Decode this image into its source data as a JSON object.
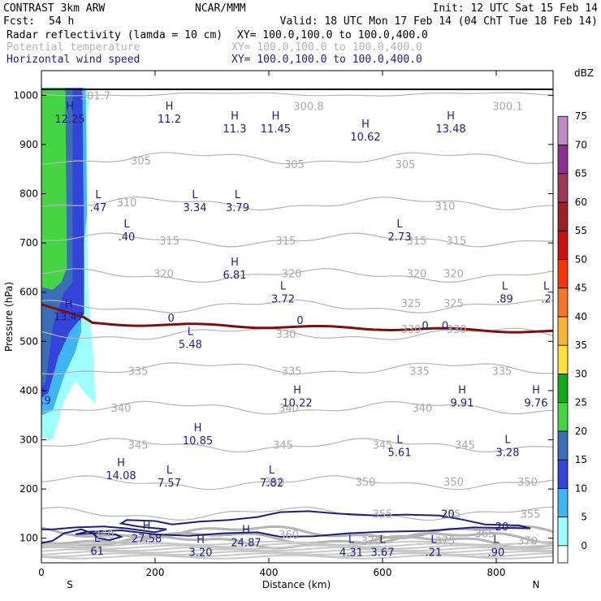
{
  "header": {
    "model": "CONTRAST   3km ARW",
    "org": "NCAR/MMM",
    "init": "Init: 12 UTC Sat 15 Feb 14",
    "fcst_label": "Fcst:",
    "fcst_value": "54 h",
    "valid": "Valid: 18 UTC Mon 17 Feb 14 (04 ChT Tue 18 Feb 14)",
    "fields": [
      {
        "name": "Radar reflectivity (lamda = 10 cm)",
        "xy": "XY= 100.0,100.0 to 100.0,400.0",
        "color": "#000000"
      },
      {
        "name": "Potential temperature",
        "xy": "XY= 100.0,100.0 to 100.0,400.0",
        "color": "#b4b4b4"
      },
      {
        "name": "Horizontal wind speed",
        "xy": "XY= 100.0,100.0 to 100.0,400.0",
        "color": "#1f1f7a"
      }
    ]
  },
  "chart_data": {
    "type": "cross-section",
    "xlabel": "Distance (km)",
    "ylabel": "Pressure (hPa)",
    "xlim": [
      0,
      900
    ],
    "ylim": [
      1050,
      50
    ],
    "x_ticks": [
      0,
      200,
      400,
      600,
      800
    ],
    "y_ticks": [
      100,
      200,
      300,
      400,
      500,
      600,
      700,
      800,
      900,
      1000
    ],
    "x_end_labels": {
      "left": "S",
      "right": "N"
    },
    "colorbar": {
      "unit": "dBZ",
      "levels": [
        {
          "value": 0,
          "color": "#ffffff"
        },
        {
          "value": 5,
          "color": "#9ffeff"
        },
        {
          "value": 10,
          "color": "#3fb5f4"
        },
        {
          "value": 15,
          "color": "#3245d8"
        },
        {
          "value": 20,
          "color": "#3a6fb8"
        },
        {
          "value": 25,
          "color": "#44d444"
        },
        {
          "value": 30,
          "color": "#14a81a"
        },
        {
          "value": 35,
          "color": "#fde23b"
        },
        {
          "value": 40,
          "color": "#f4b435"
        },
        {
          "value": 45,
          "color": "#f4752c"
        },
        {
          "value": 50,
          "color": "#f2370f"
        },
        {
          "value": 55,
          "color": "#cb1010"
        },
        {
          "value": 60,
          "color": "#9a2222"
        },
        {
          "value": 65,
          "color": "#9a3a55"
        },
        {
          "value": 70,
          "color": "#8a3095"
        },
        {
          "value": 75,
          "color": "#c08ac5"
        }
      ]
    },
    "theta_contours": [
      {
        "value": 300.8,
        "p": 1002
      },
      {
        "value": 305,
        "p": 872
      },
      {
        "value": 310,
        "p": 780
      },
      {
        "value": 315,
        "p": 706
      },
      {
        "value": 320,
        "p": 634
      },
      {
        "value": 325,
        "p": 571
      },
      {
        "value": 330,
        "p": 515
      },
      {
        "value": 335,
        "p": 445
      },
      {
        "value": 340,
        "p": 365
      },
      {
        "value": 345,
        "p": 289
      },
      {
        "value": 350,
        "p": 213
      },
      {
        "value": 355,
        "p": 150
      },
      {
        "value": 360,
        "p": 112
      },
      {
        "value": 365,
        "p": 100
      },
      {
        "value": 370,
        "p": 92
      }
    ],
    "theta_labels": [
      {
        "x": 110,
        "p": 108,
        "text": "360"
      },
      {
        "x": 435,
        "p": 108,
        "text": "360"
      },
      {
        "x": 580,
        "p": 95,
        "text": "370"
      },
      {
        "x": 710,
        "p": 95,
        "text": "375"
      },
      {
        "x": 855,
        "p": 95,
        "text": "370"
      },
      {
        "x": 780,
        "p": 110,
        "text": "365"
      },
      {
        "x": 600,
        "p": 150,
        "text": "355"
      },
      {
        "x": 720,
        "p": 150,
        "text": "355"
      },
      {
        "x": 860,
        "p": 150,
        "text": "355"
      },
      {
        "x": 410,
        "p": 215,
        "text": "350"
      },
      {
        "x": 570,
        "p": 215,
        "text": "350"
      },
      {
        "x": 725,
        "p": 215,
        "text": "350"
      },
      {
        "x": 855,
        "p": 215,
        "text": "350"
      },
      {
        "x": 170,
        "p": 290,
        "text": "345"
      },
      {
        "x": 425,
        "p": 290,
        "text": "345"
      },
      {
        "x": 600,
        "p": 290,
        "text": "345"
      },
      {
        "x": 745,
        "p": 290,
        "text": "345"
      },
      {
        "x": 140,
        "p": 365,
        "text": "340"
      },
      {
        "x": 435,
        "p": 365,
        "text": "340"
      },
      {
        "x": 670,
        "p": 365,
        "text": "340"
      },
      {
        "x": 170,
        "p": 440,
        "text": "335"
      },
      {
        "x": 440,
        "p": 440,
        "text": "335"
      },
      {
        "x": 665,
        "p": 440,
        "text": "335"
      },
      {
        "x": 810,
        "p": 440,
        "text": "335"
      },
      {
        "x": 430,
        "p": 515,
        "text": "330"
      },
      {
        "x": 650,
        "p": 525,
        "text": "330"
      },
      {
        "x": 730,
        "p": 525,
        "text": "330"
      },
      {
        "x": 650,
        "p": 578,
        "text": "325"
      },
      {
        "x": 725,
        "p": 578,
        "text": "325"
      },
      {
        "x": 215,
        "p": 638,
        "text": "320"
      },
      {
        "x": 440,
        "p": 638,
        "text": "320"
      },
      {
        "x": 660,
        "p": 638,
        "text": "320"
      },
      {
        "x": 725,
        "p": 638,
        "text": "320"
      },
      {
        "x": 225,
        "p": 705,
        "text": "315"
      },
      {
        "x": 430,
        "p": 705,
        "text": "315"
      },
      {
        "x": 660,
        "p": 705,
        "text": "315"
      },
      {
        "x": 730,
        "p": 705,
        "text": "315"
      },
      {
        "x": 150,
        "p": 783,
        "text": "310"
      },
      {
        "x": 710,
        "p": 775,
        "text": "310"
      },
      {
        "x": 175,
        "p": 868,
        "text": "305"
      },
      {
        "x": 445,
        "p": 860,
        "text": "305"
      },
      {
        "x": 640,
        "p": 860,
        "text": "305"
      },
      {
        "x": 95,
        "p": 1000,
        "text": "301.7"
      },
      {
        "x": 470,
        "p": 978,
        "text": "300.8"
      },
      {
        "x": 820,
        "p": 978,
        "text": "300.1"
      }
    ],
    "wind_contours": [
      {
        "value": 20,
        "label_points": [
          {
            "x": 810,
            "p": 124
          },
          {
            "x": 715,
            "p": 150
          }
        ]
      },
      {
        "value": 0,
        "label_points": [
          {
            "x": 228,
            "p": 548
          },
          {
            "x": 455,
            "p": 543
          },
          {
            "x": 675,
            "p": 533
          },
          {
            "x": 710,
            "p": 533
          }
        ]
      }
    ],
    "wind_extrema": [
      {
        "type": "L",
        "x": 98,
        "p": 80,
        "value": "61"
      },
      {
        "type": "H",
        "x": 280,
        "p": 77,
        "value": "3.20"
      },
      {
        "type": "L",
        "x": 545,
        "p": 77,
        "value": "4.31"
      },
      {
        "type": "L",
        "x": 600,
        "p": 77,
        "value": "3.67"
      },
      {
        "type": "L",
        "x": 690,
        "p": 77,
        "value": ".21"
      },
      {
        "type": "L",
        "x": 800,
        "p": 77,
        "value": ".90"
      },
      {
        "type": "H",
        "x": 360,
        "p": 97,
        "value": "24.87"
      },
      {
        "type": "H",
        "x": 185,
        "p": 105,
        "value": "27.58"
      },
      {
        "type": "L",
        "x": 225,
        "p": 218,
        "value": "7.57"
      },
      {
        "type": "L",
        "x": 405,
        "p": 218,
        "value": "7.82"
      },
      {
        "type": "H",
        "x": 140,
        "p": 233,
        "value": "14.08"
      },
      {
        "type": "L",
        "x": 630,
        "p": 280,
        "value": "5.61"
      },
      {
        "type": "L",
        "x": 820,
        "p": 280,
        "value": "3.28"
      },
      {
        "type": "H",
        "x": 275,
        "p": 304,
        "value": "10.85"
      },
      {
        "type": "H",
        "x": 450,
        "p": 381,
        "value": "10.22"
      },
      {
        "type": "H",
        "x": 740,
        "p": 381,
        "value": "9.91"
      },
      {
        "type": "H",
        "x": 870,
        "p": 381,
        "value": "9.76"
      },
      {
        "type": "L",
        "x": 262,
        "p": 500,
        "value": "5.48"
      },
      {
        "type": "H",
        "x": 48,
        "p": 556,
        "value": "13.47"
      },
      {
        "type": "L",
        "x": 425,
        "p": 592,
        "value": "3.72"
      },
      {
        "type": "L",
        "x": 815,
        "p": 592,
        "value": ".89"
      },
      {
        "type": "L",
        "x": 888,
        "p": 592,
        "value": ".2"
      },
      {
        "type": "H",
        "x": 340,
        "p": 641,
        "value": "6.81"
      },
      {
        "type": "L",
        "x": 150,
        "p": 718,
        "value": ".40"
      },
      {
        "type": "L",
        "x": 630,
        "p": 718,
        "value": "2.73"
      },
      {
        "type": "L",
        "x": 100,
        "p": 778,
        "value": ".47"
      },
      {
        "type": "L",
        "x": 270,
        "p": 778,
        "value": "3.34"
      },
      {
        "type": "L",
        "x": 345,
        "p": 778,
        "value": "3.79"
      },
      {
        "type": "H",
        "x": 570,
        "p": 921,
        "value": "10.62"
      },
      {
        "type": "H",
        "x": 340,
        "p": 938,
        "value": "11.3"
      },
      {
        "type": "H",
        "x": 412,
        "p": 938,
        "value": "11.45"
      },
      {
        "type": "H",
        "x": 720,
        "p": 938,
        "value": "13.48"
      },
      {
        "type": "H",
        "x": 50,
        "p": 958,
        "value": "12.25"
      },
      {
        "type": "H",
        "x": 225,
        "p": 958,
        "value": "11.2"
      }
    ],
    "edge_labels": [
      {
        "x": 8,
        "p": 381,
        "text": ".9",
        "color": "#1f1f7a"
      }
    ],
    "reflectivity_regions": [
      {
        "dbz": 5,
        "outline": [
          [
            0,
            305
          ],
          [
            20,
            300
          ],
          [
            40,
            380
          ],
          [
            60,
            420
          ],
          [
            80,
            390
          ],
          [
            90,
            380
          ],
          [
            95,
            370
          ],
          [
            92,
            460
          ],
          [
            85,
            560
          ],
          [
            82,
            610
          ],
          [
            80,
            950
          ],
          [
            85,
            1000
          ],
          [
            80,
            1015
          ],
          [
            0,
            1015
          ]
        ]
      },
      {
        "dbz": 10,
        "outline": [
          [
            0,
            350
          ],
          [
            20,
            360
          ],
          [
            40,
            430
          ],
          [
            60,
            480
          ],
          [
            70,
            520
          ],
          [
            70,
            640
          ],
          [
            80,
            760
          ],
          [
            78,
            1015
          ],
          [
            0,
            1015
          ]
        ]
      },
      {
        "dbz": 15,
        "outline": [
          [
            0,
            385
          ],
          [
            12,
            395
          ],
          [
            30,
            470
          ],
          [
            50,
            520
          ],
          [
            75,
            555
          ],
          [
            75,
            660
          ],
          [
            72,
            1015
          ],
          [
            0,
            1015
          ]
        ]
      },
      {
        "dbz": 20,
        "outline": [
          [
            0,
            405
          ],
          [
            8,
            420
          ],
          [
            20,
            530
          ],
          [
            40,
            600
          ],
          [
            55,
            620
          ],
          [
            55,
            1015
          ],
          [
            0,
            1015
          ]
        ]
      },
      {
        "dbz": 25,
        "outline": [
          [
            0,
            610
          ],
          [
            20,
            605
          ],
          [
            35,
            620
          ],
          [
            45,
            650
          ],
          [
            42,
            1015
          ],
          [
            0,
            1015
          ]
        ]
      }
    ],
    "terrain_p": 1012
  }
}
